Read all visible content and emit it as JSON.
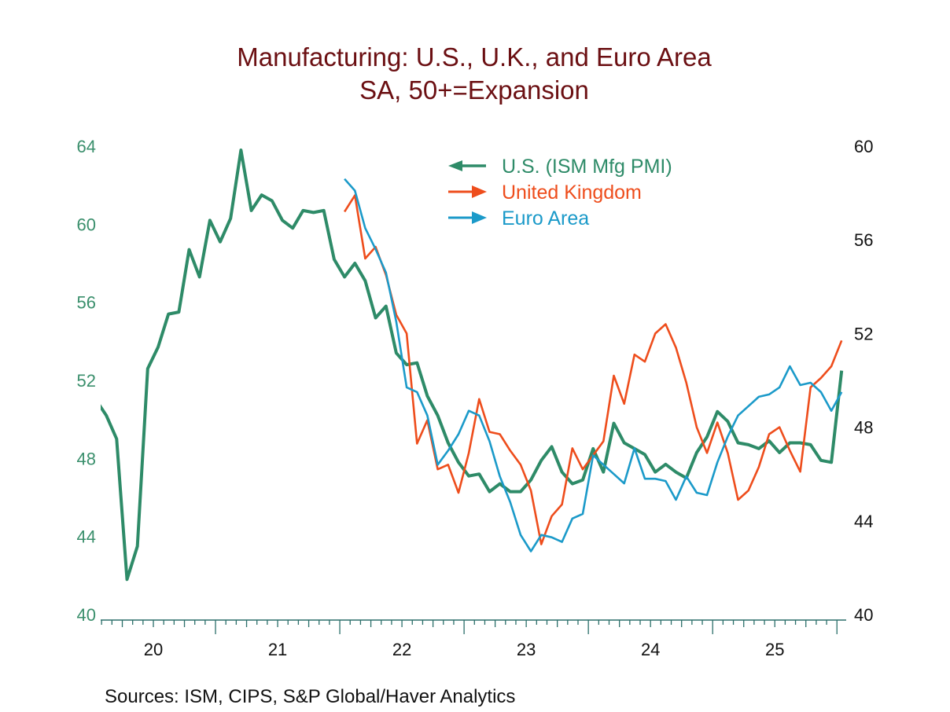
{
  "chart_data": {
    "type": "line",
    "title": "Manufacturing: U.S., U.K., and Euro Area",
    "subtitle": "SA, 50+=Expansion",
    "source": "Sources:   ISM, CIPS, S&P Global/Haver Analytics",
    "frequency": "monthly",
    "x_tick_labels": [
      "20",
      "21",
      "22",
      "23",
      "24",
      "25"
    ],
    "x_years": [
      2020,
      2021,
      2022,
      2023,
      2024,
      2025
    ],
    "left_axis": {
      "ylim": [
        40,
        64
      ],
      "ticks": [
        "40",
        "44",
        "48",
        "52",
        "56",
        "60",
        "64"
      ],
      "color": "#3a8f6c"
    },
    "right_axis": {
      "ylim": [
        40,
        60
      ],
      "ticks": [
        "40",
        "44",
        "48",
        "52",
        "56",
        "60"
      ],
      "color": "#111111"
    },
    "grid": false,
    "legend_position": "top-center",
    "series": [
      {
        "name": "U.S. (ISM Mfg PMI)",
        "axis": "left",
        "legend_arrow": "left",
        "color": "#2e8b68",
        "start": "2020-01",
        "values": [
          51.0,
          50.2,
          49.0,
          41.8,
          43.5,
          52.6,
          53.7,
          55.4,
          55.5,
          58.7,
          57.3,
          60.2,
          59.1,
          60.3,
          63.8,
          60.7,
          61.5,
          61.2,
          60.2,
          59.8,
          60.7,
          60.6,
          60.7,
          58.2,
          57.3,
          58.0,
          57.1,
          55.2,
          55.8,
          53.4,
          52.8,
          52.9,
          51.2,
          50.2,
          48.8,
          47.8,
          47.1,
          47.2,
          46.3,
          46.7,
          46.3,
          46.3,
          46.9,
          47.9,
          48.6,
          47.3,
          46.7,
          46.9,
          48.5,
          47.3,
          49.8,
          48.8,
          48.5,
          48.2,
          47.3,
          47.7,
          47.3,
          47.0,
          48.3,
          49.1,
          50.4,
          49.9,
          48.8,
          48.7,
          48.5,
          48.9,
          48.3,
          48.8,
          48.8,
          48.7,
          47.9,
          47.8,
          52.5
        ]
      },
      {
        "name": "United Kingdom",
        "axis": "right",
        "legend_arrow": "right",
        "color": "#ee4d1c",
        "start": "2022-01",
        "values": [
          57.2,
          57.9,
          55.2,
          55.7,
          54.5,
          52.8,
          52.0,
          47.3,
          48.3,
          46.2,
          46.4,
          45.2,
          46.9,
          49.2,
          47.8,
          47.7,
          47.0,
          46.4,
          45.3,
          43.0,
          44.2,
          44.7,
          47.1,
          46.2,
          46.8,
          47.4,
          50.2,
          49.0,
          51.1,
          50.8,
          52.0,
          52.4,
          51.4,
          49.9,
          48.0,
          46.9,
          48.2,
          46.9,
          44.9,
          45.3,
          46.3,
          47.7,
          48.0,
          47.0,
          46.1,
          49.7,
          50.1,
          50.6,
          51.7
        ]
      },
      {
        "name": "Euro Area",
        "axis": "right",
        "legend_arrow": "right",
        "color": "#1b9ac9",
        "start": "2022-01",
        "values": [
          58.6,
          58.1,
          56.5,
          55.6,
          54.6,
          52.5,
          49.7,
          49.5,
          48.5,
          46.4,
          47.0,
          47.7,
          48.7,
          48.5,
          47.4,
          45.9,
          44.8,
          43.4,
          42.7,
          43.4,
          43.3,
          43.1,
          44.1,
          44.3,
          46.8,
          46.4,
          46.0,
          45.6,
          47.1,
          45.8,
          45.8,
          45.7,
          44.9,
          45.9,
          45.2,
          45.1,
          46.5,
          47.6,
          48.5,
          48.9,
          49.3,
          49.4,
          49.7,
          50.6,
          49.8,
          49.9,
          49.5,
          48.7,
          49.5
        ]
      }
    ]
  }
}
